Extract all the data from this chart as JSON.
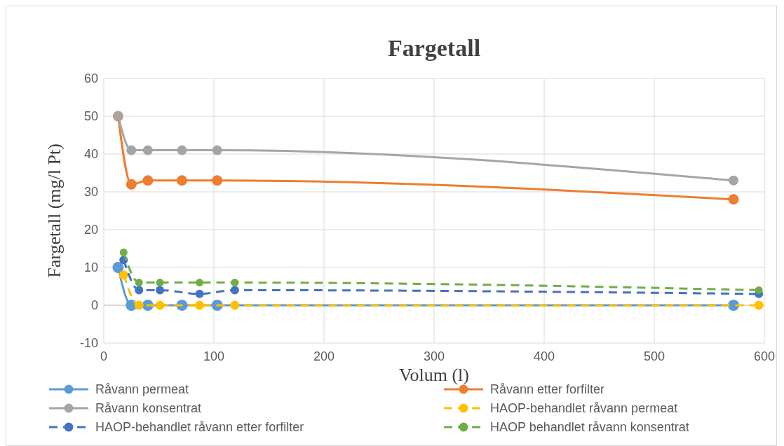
{
  "chart_data": {
    "type": "line",
    "title": "Fargetall",
    "xlabel": "Volum (l)",
    "ylabel": "Fargetall (mg/l Pt)",
    "xlim": [
      0,
      600
    ],
    "xticks": [
      0,
      100,
      200,
      300,
      400,
      500,
      600
    ],
    "ylim": [
      -10,
      60
    ],
    "yticks": [
      -10,
      0,
      10,
      20,
      30,
      40,
      50,
      60
    ],
    "grid": true,
    "legend": "bottom",
    "marker": "circle",
    "series": [
      {
        "name": "Råvann permeat",
        "color": "#5b9bd5",
        "line_style": "solid",
        "x": [
          13,
          25,
          40,
          71,
          103,
          572
        ],
        "values": [
          10,
          0,
          0,
          0,
          0,
          0
        ]
      },
      {
        "name": "Råvann etter forfilter",
        "color": "#ed7d31",
        "line_style": "solid",
        "x": [
          13,
          25,
          40,
          71,
          103,
          572
        ],
        "values": [
          50,
          32,
          33,
          33,
          33,
          28
        ]
      },
      {
        "name": "Råvann konsentrat",
        "color": "#a5a5a5",
        "line_style": "solid",
        "x": [
          13,
          25,
          40,
          71,
          103,
          572
        ],
        "values": [
          50,
          41,
          41,
          41,
          41,
          33
        ]
      },
      {
        "name": "HAOP-behandlet råvann permeat",
        "color": "#ffc000",
        "line_style": "dashed",
        "x": [
          18,
          32,
          51,
          87,
          119,
          595
        ],
        "values": [
          8,
          0,
          0,
          0,
          0,
          0
        ]
      },
      {
        "name": "HAOP-behandlet råvann etter forfilter",
        "color": "#4472c4",
        "line_style": "dashed",
        "x": [
          18,
          32,
          51,
          87,
          119,
          595
        ],
        "values": [
          12,
          4,
          4,
          3,
          4,
          3
        ]
      },
      {
        "name": "HAOP behandlet råvann konsentrat",
        "color": "#70ad47",
        "line_style": "dashed",
        "x": [
          18,
          32,
          51,
          87,
          119,
          595
        ],
        "values": [
          14,
          6,
          6,
          6,
          6,
          4
        ]
      }
    ]
  }
}
